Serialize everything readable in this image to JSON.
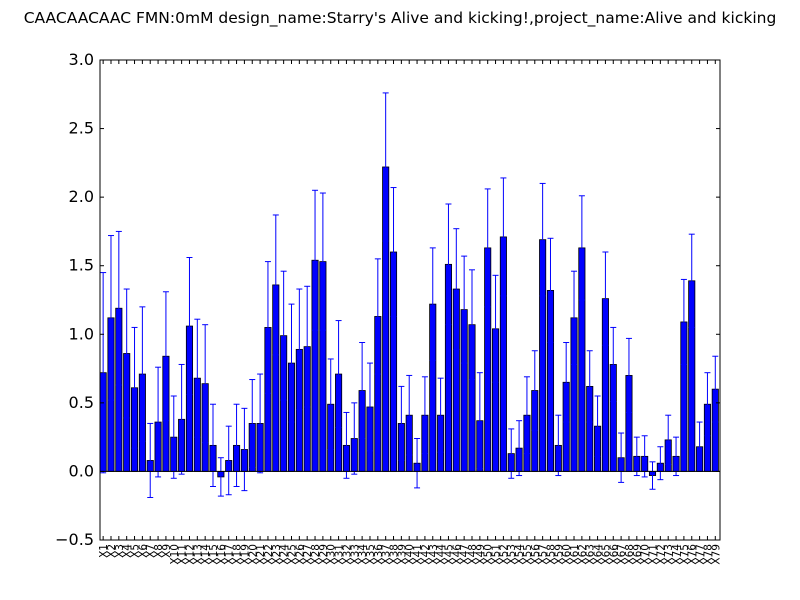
{
  "chart_data": {
    "type": "bar",
    "title": "CAACAACAAC  FMN:0mM  design_name:Starry's Alive and kicking!,project_name:Alive and kicking",
    "xlabel": "",
    "ylabel": "",
    "ylim": [
      -0.5,
      3.0
    ],
    "yticks": [
      "−0.5",
      "0.0",
      "0.5",
      "1.0",
      "1.5",
      "2.0",
      "2.5",
      "3.0"
    ],
    "bar_color": "#0000ff",
    "error_color": "#0000ff",
    "grid": false,
    "categories": [
      "X1",
      "X2",
      "X3",
      "X4",
      "X5",
      "X6",
      "X7",
      "X8",
      "X9",
      "X10",
      "X11",
      "X12",
      "X13",
      "X14",
      "X15",
      "X16",
      "X17",
      "X18",
      "X19",
      "X20",
      "X21",
      "X22",
      "X23",
      "X24",
      "X25",
      "X26",
      "X27",
      "X28",
      "X29",
      "X30",
      "X31",
      "X32",
      "X33",
      "X34",
      "X35",
      "X36",
      "X37",
      "X38",
      "X39",
      "X40",
      "X41",
      "X42",
      "X43",
      "X44",
      "X45",
      "X46",
      "X47",
      "X48",
      "X49",
      "X50",
      "X51",
      "X52",
      "X53",
      "X54",
      "X55",
      "X56",
      "X57",
      "X58",
      "X59",
      "X60",
      "X61",
      "X62",
      "X63",
      "X64",
      "X65",
      "X66",
      "X67",
      "X68",
      "X69",
      "X70",
      "X71",
      "X72",
      "X73",
      "X74",
      "X75",
      "X76",
      "X77",
      "X78",
      "X79"
    ],
    "values": [
      0.72,
      1.12,
      1.19,
      0.86,
      0.61,
      0.71,
      0.08,
      0.36,
      0.84,
      0.25,
      0.38,
      1.06,
      0.68,
      0.64,
      0.19,
      -0.04,
      0.08,
      0.19,
      0.16,
      0.35,
      0.35,
      1.05,
      1.36,
      0.99,
      0.79,
      0.89,
      0.91,
      1.54,
      1.53,
      0.49,
      0.71,
      0.19,
      0.24,
      0.59,
      0.47,
      1.13,
      2.22,
      1.6,
      0.35,
      0.41,
      0.06,
      0.41,
      1.22,
      0.41,
      1.51,
      1.33,
      1.18,
      1.07,
      0.37,
      1.63,
      1.04,
      1.71,
      0.13,
      0.17,
      0.41,
      0.59,
      1.69,
      1.32,
      0.19,
      0.65,
      1.12,
      1.63,
      0.62,
      0.33,
      1.26,
      0.78,
      0.1,
      0.7,
      0.11,
      0.11,
      -0.03,
      0.06,
      0.23,
      0.11,
      1.09,
      1.39,
      0.18,
      0.49,
      0.6
    ],
    "errors": [
      0.73,
      0.6,
      0.56,
      0.47,
      0.44,
      0.49,
      0.27,
      0.4,
      0.47,
      0.3,
      0.4,
      0.5,
      0.43,
      0.43,
      0.3,
      0.14,
      0.25,
      0.3,
      0.3,
      0.32,
      0.36,
      0.48,
      0.51,
      0.47,
      0.43,
      0.44,
      0.44,
      0.51,
      0.5,
      0.33,
      0.39,
      0.24,
      0.26,
      0.35,
      0.32,
      0.42,
      0.54,
      0.47,
      0.27,
      0.29,
      0.18,
      0.28,
      0.41,
      0.27,
      0.44,
      0.44,
      0.39,
      0.4,
      0.35,
      0.43,
      0.39,
      0.43,
      0.18,
      0.2,
      0.28,
      0.29,
      0.41,
      0.38,
      0.22,
      0.29,
      0.34,
      0.38,
      0.26,
      0.22,
      0.34,
      0.27,
      0.18,
      0.27,
      0.14,
      0.15,
      0.1,
      0.12,
      0.18,
      0.14,
      0.31,
      0.34,
      0.18,
      0.23,
      0.24
    ]
  }
}
